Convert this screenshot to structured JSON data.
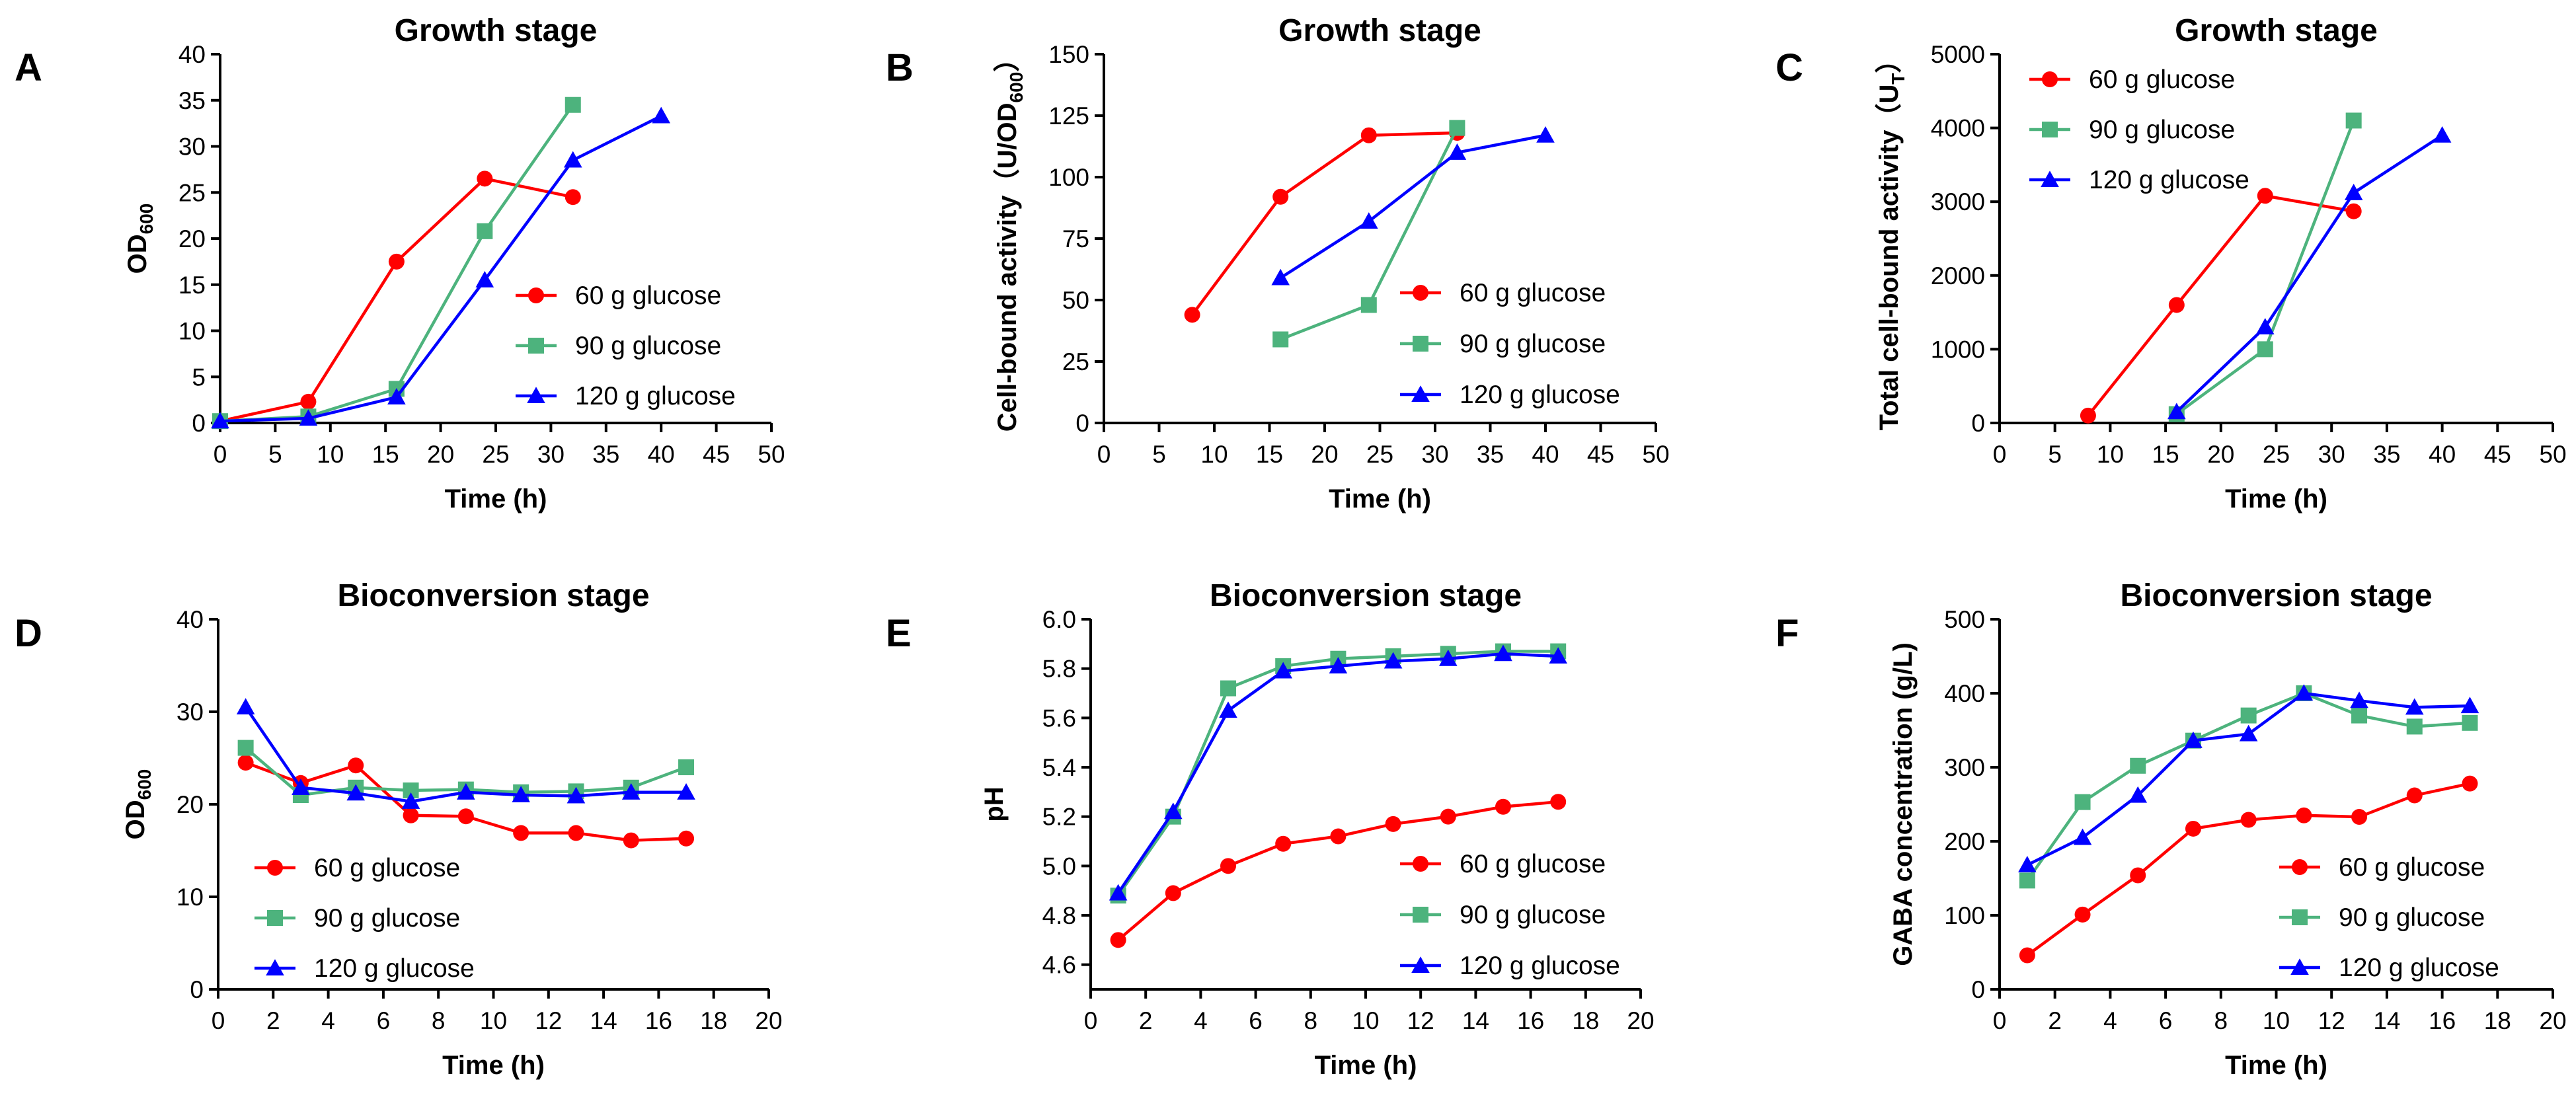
{
  "chart_data": [
    {
      "panel": "A",
      "type": "line",
      "title": "Growth stage",
      "xlabel": "Time (h)",
      "ylabel": "OD600",
      "ylabel_main": "OD",
      "ylabel_sub": "600",
      "xlim": [
        0,
        50
      ],
      "ylim": [
        0,
        40
      ],
      "xticks": [
        0,
        5,
        10,
        15,
        20,
        25,
        30,
        35,
        40,
        45,
        50
      ],
      "yticks": [
        0,
        5,
        10,
        15,
        20,
        25,
        30,
        35,
        40
      ],
      "legend_position": "bottom-right",
      "series": [
        {
          "name": "60 g glucose",
          "color": "#ff0000",
          "marker": "circle",
          "x": [
            0,
            8,
            16,
            24,
            32
          ],
          "y": [
            0.2,
            2.3,
            17.5,
            26.5,
            24.5
          ]
        },
        {
          "name": "90 g glucose",
          "color": "#4db37d",
          "marker": "square",
          "x": [
            0,
            8,
            16,
            24,
            32
          ],
          "y": [
            0.2,
            0.7,
            3.7,
            20.8,
            34.5
          ]
        },
        {
          "name": "120 g glucose",
          "color": "#0000ff",
          "marker": "triangle",
          "x": [
            0,
            8,
            16,
            24,
            32,
            40
          ],
          "y": [
            0.2,
            0.5,
            2.8,
            15.5,
            28.5,
            33.3
          ]
        }
      ]
    },
    {
      "panel": "B",
      "type": "line",
      "title": "Growth stage",
      "xlabel": "Time (h)",
      "ylabel": "Cell-bound activity（U/OD600）",
      "ylabel_main": "Cell-bound activity（U/OD",
      "ylabel_sub": "600",
      "ylabel_tail": "）",
      "xlim": [
        0,
        50
      ],
      "ylim": [
        0,
        150
      ],
      "xticks": [
        0,
        5,
        10,
        15,
        20,
        25,
        30,
        35,
        40,
        45,
        50
      ],
      "yticks": [
        0,
        25,
        50,
        75,
        100,
        125,
        150
      ],
      "legend_position": "bottom-right",
      "series": [
        {
          "name": "60 g glucose",
          "color": "#ff0000",
          "marker": "circle",
          "x": [
            8,
            16,
            24,
            32
          ],
          "y": [
            44,
            92,
            117,
            118
          ]
        },
        {
          "name": "90 g glucose",
          "color": "#4db37d",
          "marker": "square",
          "x": [
            16,
            24,
            32
          ],
          "y": [
            34,
            48,
            120
          ]
        },
        {
          "name": "120 g glucose",
          "color": "#0000ff",
          "marker": "triangle",
          "x": [
            16,
            24,
            32,
            40
          ],
          "y": [
            59,
            82,
            110,
            117
          ]
        }
      ]
    },
    {
      "panel": "C",
      "type": "line",
      "title": "Growth stage",
      "xlabel": "Time (h)",
      "ylabel": "Total cell-bound activity（UT）",
      "ylabel_main": "Total cell-bound activity（U",
      "ylabel_sub": "T",
      "ylabel_tail": "）",
      "xlim": [
        0,
        50
      ],
      "ylim": [
        0,
        5000
      ],
      "xticks": [
        0,
        5,
        10,
        15,
        20,
        25,
        30,
        35,
        40,
        45,
        50
      ],
      "yticks": [
        0,
        1000,
        2000,
        3000,
        4000,
        5000
      ],
      "legend_position": "top-left",
      "series": [
        {
          "name": "60 g glucose",
          "color": "#ff0000",
          "marker": "circle",
          "x": [
            8,
            16,
            24,
            32
          ],
          "y": [
            100,
            1600,
            3080,
            2870
          ]
        },
        {
          "name": "90 g glucose",
          "color": "#4db37d",
          "marker": "square",
          "x": [
            16,
            24,
            32
          ],
          "y": [
            120,
            1000,
            4100
          ]
        },
        {
          "name": "120 g glucose",
          "color": "#0000ff",
          "marker": "triangle",
          "x": [
            16,
            24,
            32,
            40
          ],
          "y": [
            150,
            1300,
            3120,
            3900
          ]
        }
      ]
    },
    {
      "panel": "D",
      "type": "line",
      "title": "Bioconversion stage",
      "xlabel": "Time (h)",
      "ylabel": "OD600",
      "ylabel_main": "OD",
      "ylabel_sub": "600",
      "xlim": [
        0,
        20
      ],
      "ylim": [
        0,
        40
      ],
      "xticks": [
        0,
        2,
        4,
        6,
        8,
        10,
        12,
        14,
        16,
        18,
        20
      ],
      "yticks": [
        0,
        10,
        20,
        30,
        40
      ],
      "legend_position": "bottom-left",
      "series": [
        {
          "name": "60 g glucose",
          "color": "#ff0000",
          "marker": "circle",
          "x": [
            1,
            3,
            5,
            7,
            9,
            11,
            13,
            15,
            17
          ],
          "y": [
            24.5,
            22.3,
            24.2,
            18.8,
            18.7,
            16.9,
            16.9,
            16.1,
            16.3
          ]
        },
        {
          "name": "90 g glucose",
          "color": "#4db37d",
          "marker": "square",
          "x": [
            1,
            3,
            5,
            7,
            9,
            11,
            13,
            15,
            17
          ],
          "y": [
            26.1,
            21.0,
            21.8,
            21.5,
            21.6,
            21.3,
            21.4,
            21.8,
            24.0
          ]
        },
        {
          "name": "120 g glucose",
          "color": "#0000ff",
          "marker": "triangle",
          "x": [
            1,
            3,
            5,
            7,
            9,
            11,
            13,
            15,
            17
          ],
          "y": [
            30.5,
            21.8,
            21.2,
            20.3,
            21.3,
            21.0,
            20.9,
            21.3,
            21.3
          ]
        }
      ]
    },
    {
      "panel": "E",
      "type": "line",
      "title": "Bioconversion stage",
      "xlabel": "Time (h)",
      "ylabel": "pH",
      "ylabel_main": "pH",
      "xlim": [
        0,
        20
      ],
      "ylim": [
        4.5,
        6.0
      ],
      "xticks": [
        0,
        2,
        4,
        6,
        8,
        10,
        12,
        14,
        16,
        18,
        20
      ],
      "yticks": [
        4.6,
        4.8,
        5.0,
        5.2,
        5.4,
        5.6,
        5.8,
        6.0
      ],
      "ytick_labels": [
        "4.6",
        "4.8",
        "5.0",
        "5.2",
        "5.4",
        "5.6",
        "5.8",
        "6.0"
      ],
      "legend_position": "bottom-right",
      "series": [
        {
          "name": "60 g glucose",
          "color": "#ff0000",
          "marker": "circle",
          "x": [
            1,
            3,
            5,
            7,
            9,
            11,
            13,
            15,
            17
          ],
          "y": [
            4.7,
            4.89,
            5.0,
            5.09,
            5.12,
            5.17,
            5.2,
            5.24,
            5.26
          ]
        },
        {
          "name": "90 g glucose",
          "color": "#4db37d",
          "marker": "square",
          "x": [
            1,
            3,
            5,
            7,
            9,
            11,
            13,
            15,
            17
          ],
          "y": [
            4.88,
            5.2,
            5.72,
            5.81,
            5.84,
            5.85,
            5.86,
            5.87,
            5.87
          ]
        },
        {
          "name": "120 g glucose",
          "color": "#0000ff",
          "marker": "triangle",
          "x": [
            1,
            3,
            5,
            7,
            9,
            11,
            13,
            15,
            17
          ],
          "y": [
            4.89,
            5.22,
            5.63,
            5.79,
            5.81,
            5.83,
            5.84,
            5.86,
            5.85
          ]
        }
      ]
    },
    {
      "panel": "F",
      "type": "line",
      "title": "Bioconversion stage",
      "xlabel": "Time (h)",
      "ylabel": "GABA concentration (g/L)",
      "ylabel_main": "GABA concentration (g/L)",
      "xlim": [
        0,
        20
      ],
      "ylim": [
        0,
        500
      ],
      "xticks": [
        0,
        2,
        4,
        6,
        8,
        10,
        12,
        14,
        16,
        18,
        20
      ],
      "yticks": [
        0,
        100,
        200,
        300,
        400,
        500
      ],
      "legend_position": "bottom-right",
      "series": [
        {
          "name": "60 g glucose",
          "color": "#ff0000",
          "marker": "circle",
          "x": [
            1,
            3,
            5,
            7,
            9,
            11,
            13,
            15,
            17
          ],
          "y": [
            46,
            101,
            154,
            217,
            229,
            235,
            233,
            262,
            278
          ]
        },
        {
          "name": "90 g glucose",
          "color": "#4db37d",
          "marker": "square",
          "x": [
            1,
            3,
            5,
            7,
            9,
            11,
            13,
            15,
            17
          ],
          "y": [
            147,
            253,
            302,
            336,
            370,
            400,
            370,
            355,
            360
          ]
        },
        {
          "name": "120 g glucose",
          "color": "#0000ff",
          "marker": "triangle",
          "x": [
            1,
            3,
            5,
            7,
            9,
            11,
            13,
            15,
            17
          ],
          "y": [
            168,
            205,
            262,
            336,
            345,
            400,
            390,
            381,
            383
          ]
        }
      ]
    }
  ]
}
